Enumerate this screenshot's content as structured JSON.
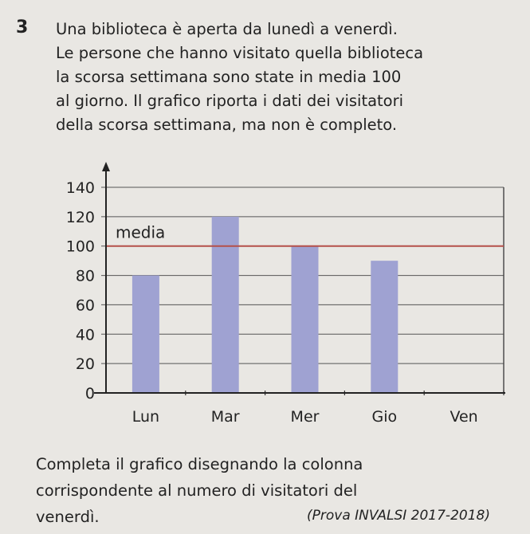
{
  "exercise": {
    "number": "3",
    "text_lines": [
      "Una biblioteca è aperta da lunedì a venerdì.",
      "Le persone che hanno visitato quella biblioteca",
      "la scorsa settimana sono state in media 100",
      "al giorno. Il grafico riporta i dati dei visitatori",
      "della scorsa settimana, ma non è completo."
    ],
    "question_lines": [
      "Completa il grafico disegnando la colonna",
      "corrispondente al numero di visitatori del",
      "venerdì."
    ],
    "source": "(Prova INVALSI 2017-2018)"
  },
  "chart_data": {
    "type": "bar",
    "categories": [
      "Lun",
      "Mar",
      "Mer",
      "Gio",
      "Ven"
    ],
    "values": [
      80,
      120,
      100,
      90,
      null
    ],
    "ylim": [
      0,
      140
    ],
    "yticks": [
      "0",
      "20",
      "40",
      "60",
      "80",
      "100",
      "120",
      "140"
    ],
    "grid": true,
    "reference_line": {
      "label": "media",
      "value": 100,
      "color": "#b5504a"
    },
    "bar_color": "#9fa2d2"
  }
}
